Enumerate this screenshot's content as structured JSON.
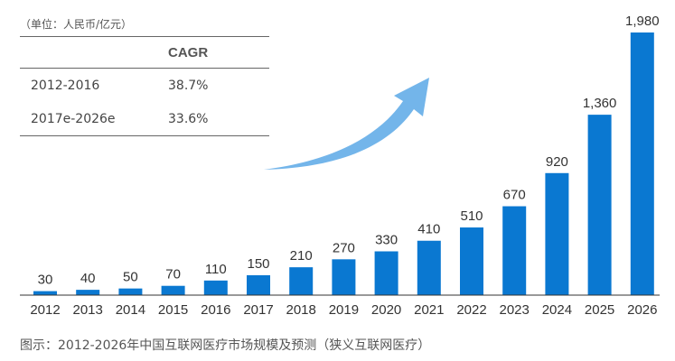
{
  "unit_note": "（单位：人民币/亿元）",
  "cagr_table": {
    "header": "CAGR",
    "rows": [
      {
        "period": "2012-2016",
        "value": "38.7%"
      },
      {
        "period": "2017e-2026e",
        "value": "33.6%"
      }
    ]
  },
  "caption": "图示：2012-2026年中国互联网医疗市场规模及预测（狭义互联网医疗）",
  "colors": {
    "bar": "#0a78d1",
    "arrow": "#5aa8e6",
    "axis": "#333333"
  },
  "chart_data": {
    "type": "bar",
    "categories": [
      "2012",
      "2013",
      "2014",
      "2015",
      "2016",
      "2017",
      "2018",
      "2019",
      "2020",
      "2021",
      "2022",
      "2023",
      "2024",
      "2025",
      "2026"
    ],
    "values": [
      30,
      40,
      50,
      70,
      110,
      150,
      210,
      270,
      330,
      410,
      510,
      670,
      920,
      1360,
      1980
    ],
    "labels": [
      "30",
      "40",
      "50",
      "70",
      "110",
      "150",
      "210",
      "270",
      "330",
      "410",
      "510",
      "670",
      "920",
      "1,360",
      "1,980"
    ],
    "ylim": [
      0,
      1980
    ]
  }
}
